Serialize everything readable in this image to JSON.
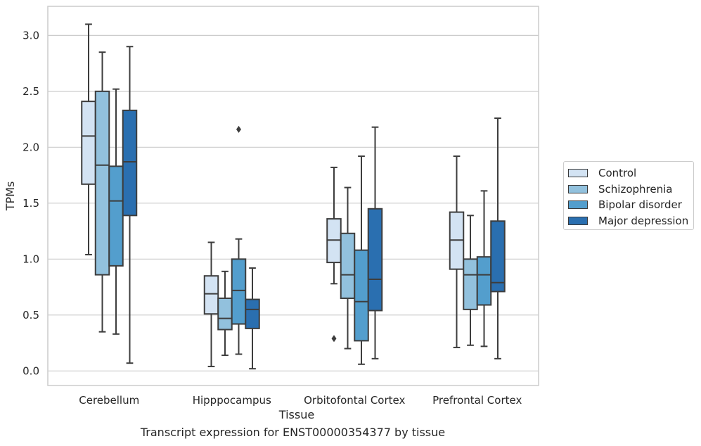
{
  "caption": "Transcript expression for ENST00000354377 by tissue",
  "chart_data": {
    "type": "box",
    "title": "",
    "xlabel": "Tissue",
    "ylabel": "TPMs",
    "ylim": [
      -0.13,
      3.26
    ],
    "yticks": [
      0.0,
      0.5,
      1.0,
      1.5,
      2.0,
      2.5,
      3.0
    ],
    "ytick_labels": [
      "0.0",
      "0.5",
      "1.0",
      "1.5",
      "2.0",
      "2.5",
      "3.0"
    ],
    "grid": "horizontal",
    "legend_position": "right, outside plot",
    "categories": [
      "Cerebellum",
      "Hipppocampus",
      "Orbitofontal Cortex",
      "Prefrontal Cortex"
    ],
    "series": [
      {
        "name": "Control",
        "color": "#d3e3f3",
        "boxes": [
          {
            "whisker_low": 1.04,
            "q1": 1.67,
            "median": 2.1,
            "q3": 2.41,
            "whisker_high": 3.1,
            "outliers": []
          },
          {
            "whisker_low": 0.04,
            "q1": 0.51,
            "median": 0.69,
            "q3": 0.85,
            "whisker_high": 1.15,
            "outliers": []
          },
          {
            "whisker_low": 0.78,
            "q1": 0.97,
            "median": 1.17,
            "q3": 1.36,
            "whisker_high": 1.82,
            "outliers": [
              0.29
            ]
          },
          {
            "whisker_low": 0.21,
            "q1": 0.91,
            "median": 1.17,
            "q3": 1.42,
            "whisker_high": 1.92,
            "outliers": []
          }
        ]
      },
      {
        "name": "Schizophrenia",
        "color": "#92c1dd",
        "boxes": [
          {
            "whisker_low": 0.35,
            "q1": 0.86,
            "median": 1.84,
            "q3": 2.5,
            "whisker_high": 2.85,
            "outliers": []
          },
          {
            "whisker_low": 0.14,
            "q1": 0.37,
            "median": 0.47,
            "q3": 0.65,
            "whisker_high": 0.89,
            "outliers": []
          },
          {
            "whisker_low": 0.2,
            "q1": 0.65,
            "median": 0.86,
            "q3": 1.23,
            "whisker_high": 1.64,
            "outliers": []
          },
          {
            "whisker_low": 0.23,
            "q1": 0.55,
            "median": 0.86,
            "q3": 1.0,
            "whisker_high": 1.39,
            "outliers": []
          }
        ]
      },
      {
        "name": "Bipolar disorder",
        "color": "#539ecd",
        "boxes": [
          {
            "whisker_low": 0.33,
            "q1": 0.94,
            "median": 1.52,
            "q3": 1.83,
            "whisker_high": 2.52,
            "outliers": []
          },
          {
            "whisker_low": 0.15,
            "q1": 0.42,
            "median": 0.72,
            "q3": 1.0,
            "whisker_high": 1.18,
            "outliers": [
              2.16
            ]
          },
          {
            "whisker_low": 0.06,
            "q1": 0.27,
            "median": 0.62,
            "q3": 1.08,
            "whisker_high": 1.92,
            "outliers": []
          },
          {
            "whisker_low": 0.22,
            "q1": 0.59,
            "median": 0.86,
            "q3": 1.02,
            "whisker_high": 1.61,
            "outliers": []
          }
        ]
      },
      {
        "name": "Major depression",
        "color": "#2a6fb0",
        "boxes": [
          {
            "whisker_low": 0.07,
            "q1": 1.39,
            "median": 1.87,
            "q3": 2.33,
            "whisker_high": 2.9,
            "outliers": []
          },
          {
            "whisker_low": 0.02,
            "q1": 0.38,
            "median": 0.55,
            "q3": 0.64,
            "whisker_high": 0.92,
            "outliers": []
          },
          {
            "whisker_low": 0.11,
            "q1": 0.54,
            "median": 0.82,
            "q3": 1.45,
            "whisker_high": 2.18,
            "outliers": []
          },
          {
            "whisker_low": 0.11,
            "q1": 0.71,
            "median": 0.79,
            "q3": 1.34,
            "whisker_high": 2.26,
            "outliers": []
          }
        ]
      }
    ]
  }
}
